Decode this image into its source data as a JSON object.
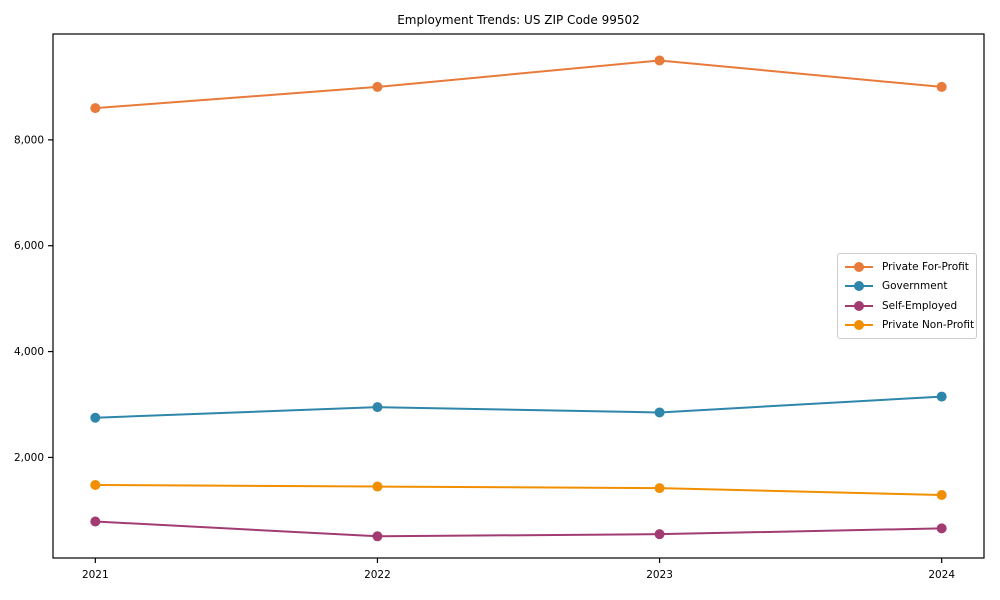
{
  "chart_data": {
    "type": "line",
    "title": "Employment Trends: US ZIP Code 99502",
    "x": [
      2021,
      2022,
      2023,
      2024
    ],
    "xtick_labels": [
      "2021",
      "2022",
      "2023",
      "2024"
    ],
    "series": [
      {
        "name": "Private For-Profit",
        "color": "#E87A3A",
        "values": [
          8600,
          9000,
          9500,
          9000
        ]
      },
      {
        "name": "Government",
        "color": "#2E86AB",
        "values": [
          2750,
          2950,
          2850,
          3150
        ]
      },
      {
        "name": "Self-Employed",
        "color": "#A23B72",
        "values": [
          790,
          510,
          550,
          660
        ]
      },
      {
        "name": "Private Non-Profit",
        "color": "#F18F01",
        "values": [
          1480,
          1450,
          1420,
          1290
        ]
      }
    ],
    "xlabel": "",
    "ylabel": "",
    "xlim": [
      2020.85,
      2024.15
    ],
    "ylim": [
      100,
      10000
    ],
    "yticks": [
      2000,
      4000,
      6000,
      8000
    ],
    "ytick_labels": [
      "2,000",
      "4,000",
      "6,000",
      "8,000"
    ],
    "grid": false,
    "legend_position": "center-right",
    "axis_color": "#000000",
    "legend_border_color": "#cccccc"
  }
}
